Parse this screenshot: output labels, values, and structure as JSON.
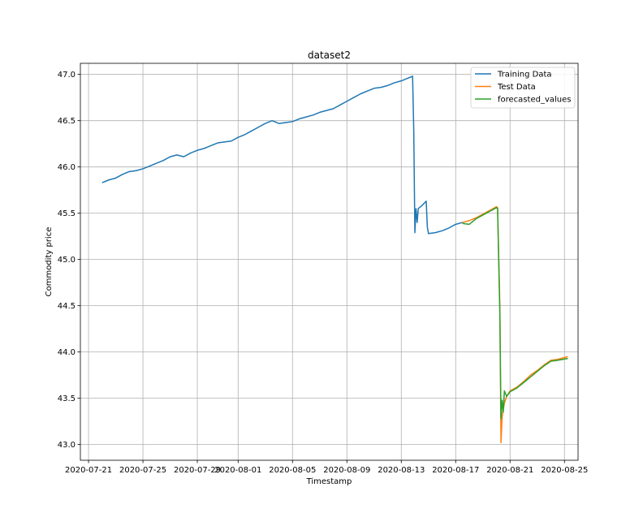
{
  "chart_data": {
    "type": "line",
    "title": "dataset2",
    "xlabel": "Timestamp",
    "ylabel": "Commodity price",
    "x_type": "date",
    "xlim": [
      "2020-07-20T09:36",
      "2020-08-26T00:00"
    ],
    "ylim": [
      42.83,
      47.12
    ],
    "grid": true,
    "legend_position": "top-right",
    "x_ticks": [
      "2020-07-21",
      "2020-07-25",
      "2020-07-29",
      "2020-08-01",
      "2020-08-05",
      "2020-08-09",
      "2020-08-13",
      "2020-08-17",
      "2020-08-21",
      "2020-08-25"
    ],
    "y_ticks": [
      "43.0",
      "43.5",
      "44.0",
      "44.5",
      "45.0",
      "45.5",
      "46.0",
      "46.5",
      "47.0"
    ],
    "series": [
      {
        "name": "Training Data",
        "color": "#1f77b4",
        "points": [
          [
            "2020-07-22T00:00",
            45.83
          ],
          [
            "2020-07-22T12:00",
            45.86
          ],
          [
            "2020-07-23T00:00",
            45.88
          ],
          [
            "2020-07-23T12:00",
            45.92
          ],
          [
            "2020-07-24T00:00",
            45.95
          ],
          [
            "2020-07-24T12:00",
            45.96
          ],
          [
            "2020-07-25T00:00",
            45.98
          ],
          [
            "2020-07-25T12:00",
            46.01
          ],
          [
            "2020-07-26T00:00",
            46.04
          ],
          [
            "2020-07-26T12:00",
            46.07
          ],
          [
            "2020-07-27T00:00",
            46.11
          ],
          [
            "2020-07-27T12:00",
            46.13
          ],
          [
            "2020-07-28T00:00",
            46.11
          ],
          [
            "2020-07-28T12:00",
            46.15
          ],
          [
            "2020-07-29T00:00",
            46.18
          ],
          [
            "2020-07-29T12:00",
            46.2
          ],
          [
            "2020-07-30T00:00",
            46.23
          ],
          [
            "2020-07-30T12:00",
            46.26
          ],
          [
            "2020-07-31T00:00",
            46.27
          ],
          [
            "2020-07-31T12:00",
            46.28
          ],
          [
            "2020-08-01T00:00",
            46.32
          ],
          [
            "2020-08-01T12:00",
            46.35
          ],
          [
            "2020-08-02T00:00",
            46.39
          ],
          [
            "2020-08-02T12:00",
            46.43
          ],
          [
            "2020-08-03T00:00",
            46.47
          ],
          [
            "2020-08-03T12:00",
            46.5
          ],
          [
            "2020-08-04T00:00",
            46.47
          ],
          [
            "2020-08-04T12:00",
            46.48
          ],
          [
            "2020-08-05T00:00",
            46.49
          ],
          [
            "2020-08-05T12:00",
            46.52
          ],
          [
            "2020-08-06T00:00",
            46.54
          ],
          [
            "2020-08-06T12:00",
            46.56
          ],
          [
            "2020-08-07T00:00",
            46.59
          ],
          [
            "2020-08-07T12:00",
            46.61
          ],
          [
            "2020-08-08T00:00",
            46.63
          ],
          [
            "2020-08-08T12:00",
            46.67
          ],
          [
            "2020-08-09T00:00",
            46.71
          ],
          [
            "2020-08-09T12:00",
            46.75
          ],
          [
            "2020-08-10T00:00",
            46.79
          ],
          [
            "2020-08-10T12:00",
            46.82
          ],
          [
            "2020-08-11T00:00",
            46.85
          ],
          [
            "2020-08-11T12:00",
            46.86
          ],
          [
            "2020-08-12T00:00",
            46.88
          ],
          [
            "2020-08-12T12:00",
            46.91
          ],
          [
            "2020-08-13T00:00",
            46.93
          ],
          [
            "2020-08-13T12:00",
            46.96
          ],
          [
            "2020-08-13T20:00",
            46.98
          ],
          [
            "2020-08-13T22:00",
            46.4
          ],
          [
            "2020-08-14T00:00",
            45.29
          ],
          [
            "2020-08-14T02:00",
            45.55
          ],
          [
            "2020-08-14T04:00",
            45.4
          ],
          [
            "2020-08-14T06:00",
            45.55
          ],
          [
            "2020-08-14T12:00",
            45.58
          ],
          [
            "2020-08-14T20:00",
            45.63
          ],
          [
            "2020-08-14T22:00",
            45.35
          ],
          [
            "2020-08-15T00:00",
            45.28
          ],
          [
            "2020-08-15T12:00",
            45.29
          ],
          [
            "2020-08-16T00:00",
            45.31
          ],
          [
            "2020-08-16T12:00",
            45.34
          ],
          [
            "2020-08-17T00:00",
            45.38
          ],
          [
            "2020-08-17T12:00",
            45.4
          ]
        ]
      },
      {
        "name": "Test Data",
        "color": "#ff7f0e",
        "points": [
          [
            "2020-08-17T12:00",
            45.4
          ],
          [
            "2020-08-18T00:00",
            45.42
          ],
          [
            "2020-08-18T12:00",
            45.45
          ],
          [
            "2020-08-19T00:00",
            45.49
          ],
          [
            "2020-08-19T12:00",
            45.53
          ],
          [
            "2020-08-20T00:00",
            45.57
          ],
          [
            "2020-08-20T02:00",
            45.56
          ],
          [
            "2020-08-20T06:00",
            44.5
          ],
          [
            "2020-08-20T08:00",
            43.02
          ],
          [
            "2020-08-20T10:00",
            43.3
          ],
          [
            "2020-08-20T14:00",
            43.45
          ],
          [
            "2020-08-20T18:00",
            43.52
          ],
          [
            "2020-08-21T00:00",
            43.58
          ],
          [
            "2020-08-21T12:00",
            43.62
          ],
          [
            "2020-08-22T00:00",
            43.68
          ],
          [
            "2020-08-22T12:00",
            43.75
          ],
          [
            "2020-08-23T00:00",
            43.8
          ],
          [
            "2020-08-23T12:00",
            43.86
          ],
          [
            "2020-08-24T00:00",
            43.91
          ],
          [
            "2020-08-24T12:00",
            43.92
          ],
          [
            "2020-08-25T06:00",
            43.95
          ]
        ]
      },
      {
        "name": "forecasted_values",
        "color": "#2ca02c",
        "points": [
          [
            "2020-08-17T12:00",
            45.39
          ],
          [
            "2020-08-18T00:00",
            45.38
          ],
          [
            "2020-08-18T12:00",
            45.44
          ],
          [
            "2020-08-19T00:00",
            45.48
          ],
          [
            "2020-08-19T12:00",
            45.52
          ],
          [
            "2020-08-20T00:00",
            45.56
          ],
          [
            "2020-08-20T02:00",
            45.55
          ],
          [
            "2020-08-20T06:00",
            44.4
          ],
          [
            "2020-08-20T08:00",
            43.28
          ],
          [
            "2020-08-20T10:00",
            43.48
          ],
          [
            "2020-08-20T12:00",
            43.35
          ],
          [
            "2020-08-20T14:00",
            43.58
          ],
          [
            "2020-08-20T18:00",
            43.52
          ],
          [
            "2020-08-21T00:00",
            43.57
          ],
          [
            "2020-08-21T12:00",
            43.61
          ],
          [
            "2020-08-22T00:00",
            43.67
          ],
          [
            "2020-08-22T12:00",
            43.73
          ],
          [
            "2020-08-23T00:00",
            43.79
          ],
          [
            "2020-08-23T12:00",
            43.85
          ],
          [
            "2020-08-24T00:00",
            43.9
          ],
          [
            "2020-08-24T12:00",
            43.91
          ],
          [
            "2020-08-25T06:00",
            43.93
          ]
        ]
      }
    ]
  }
}
